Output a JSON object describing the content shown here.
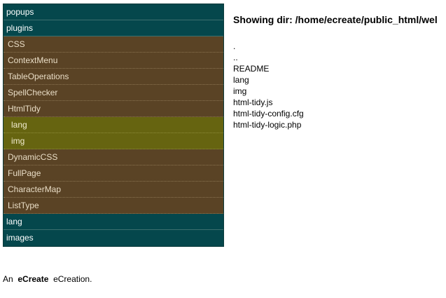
{
  "nav": {
    "items": [
      {
        "label": "popups",
        "style": "teal"
      },
      {
        "label": "plugins",
        "style": "teal"
      },
      {
        "label": "CSS",
        "style": "brown"
      },
      {
        "label": "ContextMenu",
        "style": "brown"
      },
      {
        "label": "TableOperations",
        "style": "brown"
      },
      {
        "label": "SpellChecker",
        "style": "brown"
      },
      {
        "label": "HtmlTidy",
        "style": "brown"
      },
      {
        "label": "lang",
        "style": "olive"
      },
      {
        "label": "img",
        "style": "olive"
      },
      {
        "label": "DynamicCSS",
        "style": "brown"
      },
      {
        "label": "FullPage",
        "style": "brown"
      },
      {
        "label": "CharacterMap",
        "style": "brown"
      },
      {
        "label": "ListType",
        "style": "brown"
      },
      {
        "label": "lang",
        "style": "teal"
      },
      {
        "label": "images",
        "style": "teal"
      }
    ]
  },
  "main": {
    "heading": "Showing dir: /home/ecreate/public_html/wel",
    "files": [
      ".",
      "..",
      "README",
      "lang",
      "img",
      "html-tidy.js",
      "html-tidy-config.cfg",
      "html-tidy-logic.php"
    ]
  },
  "footer": {
    "prefix": "An",
    "brand": "eCreate",
    "suffix": "eCreation."
  },
  "colors": {
    "teal": "#05474c",
    "brown": "#5a4325",
    "olive": "#666410"
  }
}
